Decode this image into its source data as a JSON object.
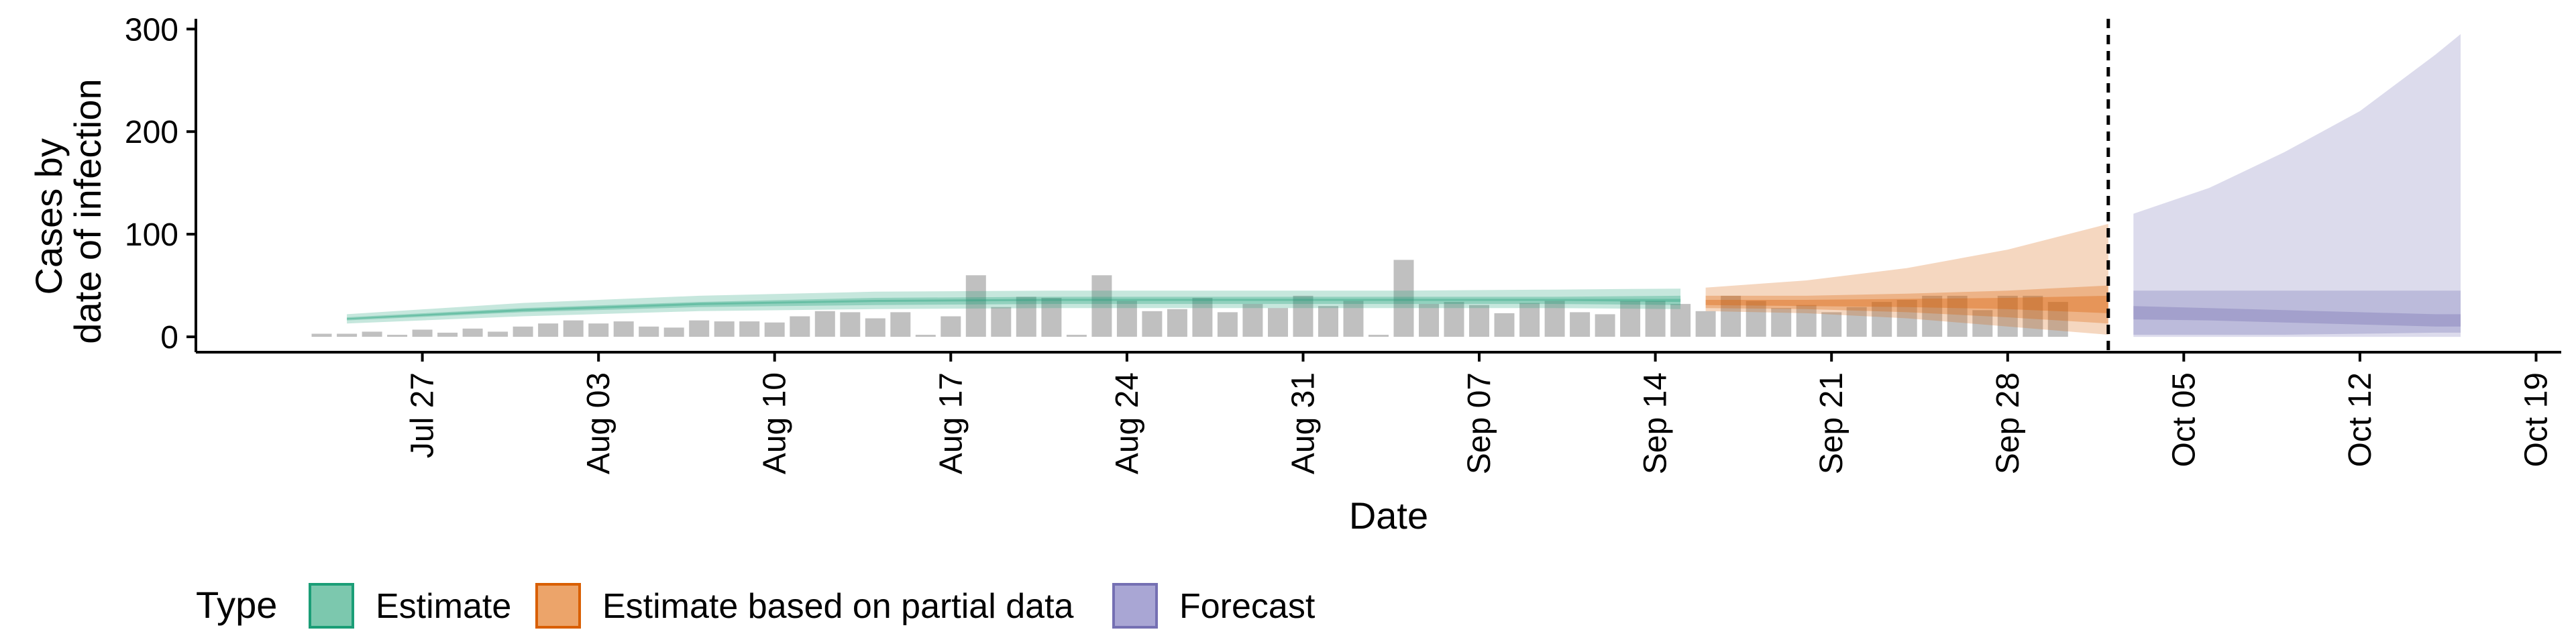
{
  "chart_data": {
    "type": "bar",
    "title": "",
    "xlabel": "Date",
    "ylabel_lines": [
      "Cases by",
      "date of infection"
    ],
    "x_range": [
      "2020-07-18",
      "2020-10-20"
    ],
    "ylim": [
      -15,
      310
    ],
    "x_ticks": [
      "2020-07-27",
      "2020-08-03",
      "2020-08-10",
      "2020-08-17",
      "2020-08-24",
      "2020-08-31",
      "2020-09-07",
      "2020-09-14",
      "2020-09-21",
      "2020-09-28",
      "2020-10-05",
      "2020-10-12",
      "2020-10-19"
    ],
    "x_tick_labels": [
      "Jul 27",
      "Aug 03",
      "Aug 10",
      "Aug 17",
      "Aug 24",
      "Aug 31",
      "Sep 07",
      "Sep 14",
      "Sep 21",
      "Sep 28",
      "Oct 05",
      "Oct 12",
      "Oct 19"
    ],
    "y_ticks": [
      0,
      100,
      200,
      300
    ],
    "y_tick_labels": [
      "0",
      "100",
      "200",
      "300"
    ],
    "forecast_date": "2020-10-02",
    "grid": false,
    "legend_position": "bottom",
    "legend": {
      "title": "Type",
      "items": [
        {
          "label": "Estimate",
          "fill": "#7cc8ae",
          "stroke": "#1b9e77"
        },
        {
          "label": "Estimate based on partial data",
          "fill": "#eca46a",
          "stroke": "#d95f02"
        },
        {
          "label": "Forecast",
          "fill": "#a9a6d4",
          "stroke": "#7570b3"
        }
      ]
    },
    "colors": {
      "bars": "#c0c0c0",
      "estimate": "#1b9e77",
      "partial": "#d95f02",
      "forecast": "#7570b3",
      "vline": "#000000"
    },
    "reported_cases": {
      "start": "2020-07-23",
      "values": [
        3,
        3,
        5,
        0,
        7,
        4,
        8,
        5,
        10,
        13,
        16,
        13,
        15,
        10,
        9,
        16,
        15,
        15,
        14,
        20,
        25,
        24,
        18,
        24,
        0,
        20,
        60,
        29,
        39,
        38,
        0,
        60,
        35,
        25,
        27,
        38,
        24,
        32,
        28,
        40,
        30,
        35,
        0,
        75,
        32,
        34,
        31,
        23,
        33,
        35,
        24,
        22,
        35,
        35,
        32,
        25,
        40,
        35,
        28,
        31,
        24,
        29,
        34,
        36,
        40,
        40,
        26,
        40,
        40,
        34
      ]
    },
    "series": [
      {
        "name": "Estimate",
        "dates": [
          "2020-07-24",
          "2020-07-31",
          "2020-08-07",
          "2020-08-14",
          "2020-08-21",
          "2020-08-28",
          "2020-09-04",
          "2020-09-10",
          "2020-09-15"
        ],
        "outer_lower": [
          13,
          20,
          25,
          27,
          28,
          28,
          28,
          28,
          27
        ],
        "outer_upper": [
          22,
          33,
          40,
          44,
          45,
          45,
          45,
          46,
          47
        ],
        "mid_lower": [
          16,
          24,
          29,
          31,
          32,
          32,
          32,
          32,
          31
        ],
        "mid_upper": [
          19,
          28,
          34,
          38,
          39,
          39,
          39,
          39,
          40
        ],
        "inner_lower": [
          17,
          25,
          31,
          34,
          35,
          35,
          35,
          35,
          34
        ],
        "inner_upper": [
          18,
          27,
          33,
          36,
          37,
          37,
          37,
          37,
          37
        ]
      },
      {
        "name": "Estimate based on partial data",
        "dates": [
          "2020-09-16",
          "2020-09-20",
          "2020-09-24",
          "2020-09-28",
          "2020-10-02"
        ],
        "outer_lower": [
          25,
          23,
          18,
          10,
          2
        ],
        "outer_upper": [
          48,
          55,
          67,
          85,
          110
        ],
        "mid_lower": [
          28,
          27,
          24,
          19,
          13
        ],
        "mid_upper": [
          40,
          40,
          42,
          45,
          50
        ],
        "inner_lower": [
          31,
          30,
          29,
          27,
          23
        ],
        "inner_upper": [
          36,
          36,
          37,
          38,
          40
        ]
      },
      {
        "name": "Forecast",
        "dates": [
          "2020-10-03",
          "2020-10-06",
          "2020-10-09",
          "2020-10-12",
          "2020-10-15",
          "2020-10-16"
        ],
        "outer_lower": [
          0,
          0,
          0,
          0,
          0,
          0
        ],
        "outer_upper": [
          120,
          145,
          180,
          220,
          275,
          295
        ],
        "mid_lower": [
          2,
          2,
          2,
          3,
          4,
          4
        ],
        "mid_upper": [
          45,
          45,
          45,
          45,
          45,
          45
        ],
        "inner_lower": [
          17,
          16,
          14,
          12,
          10,
          10
        ],
        "inner_upper": [
          30,
          28,
          26,
          24,
          22,
          22
        ]
      }
    ]
  }
}
